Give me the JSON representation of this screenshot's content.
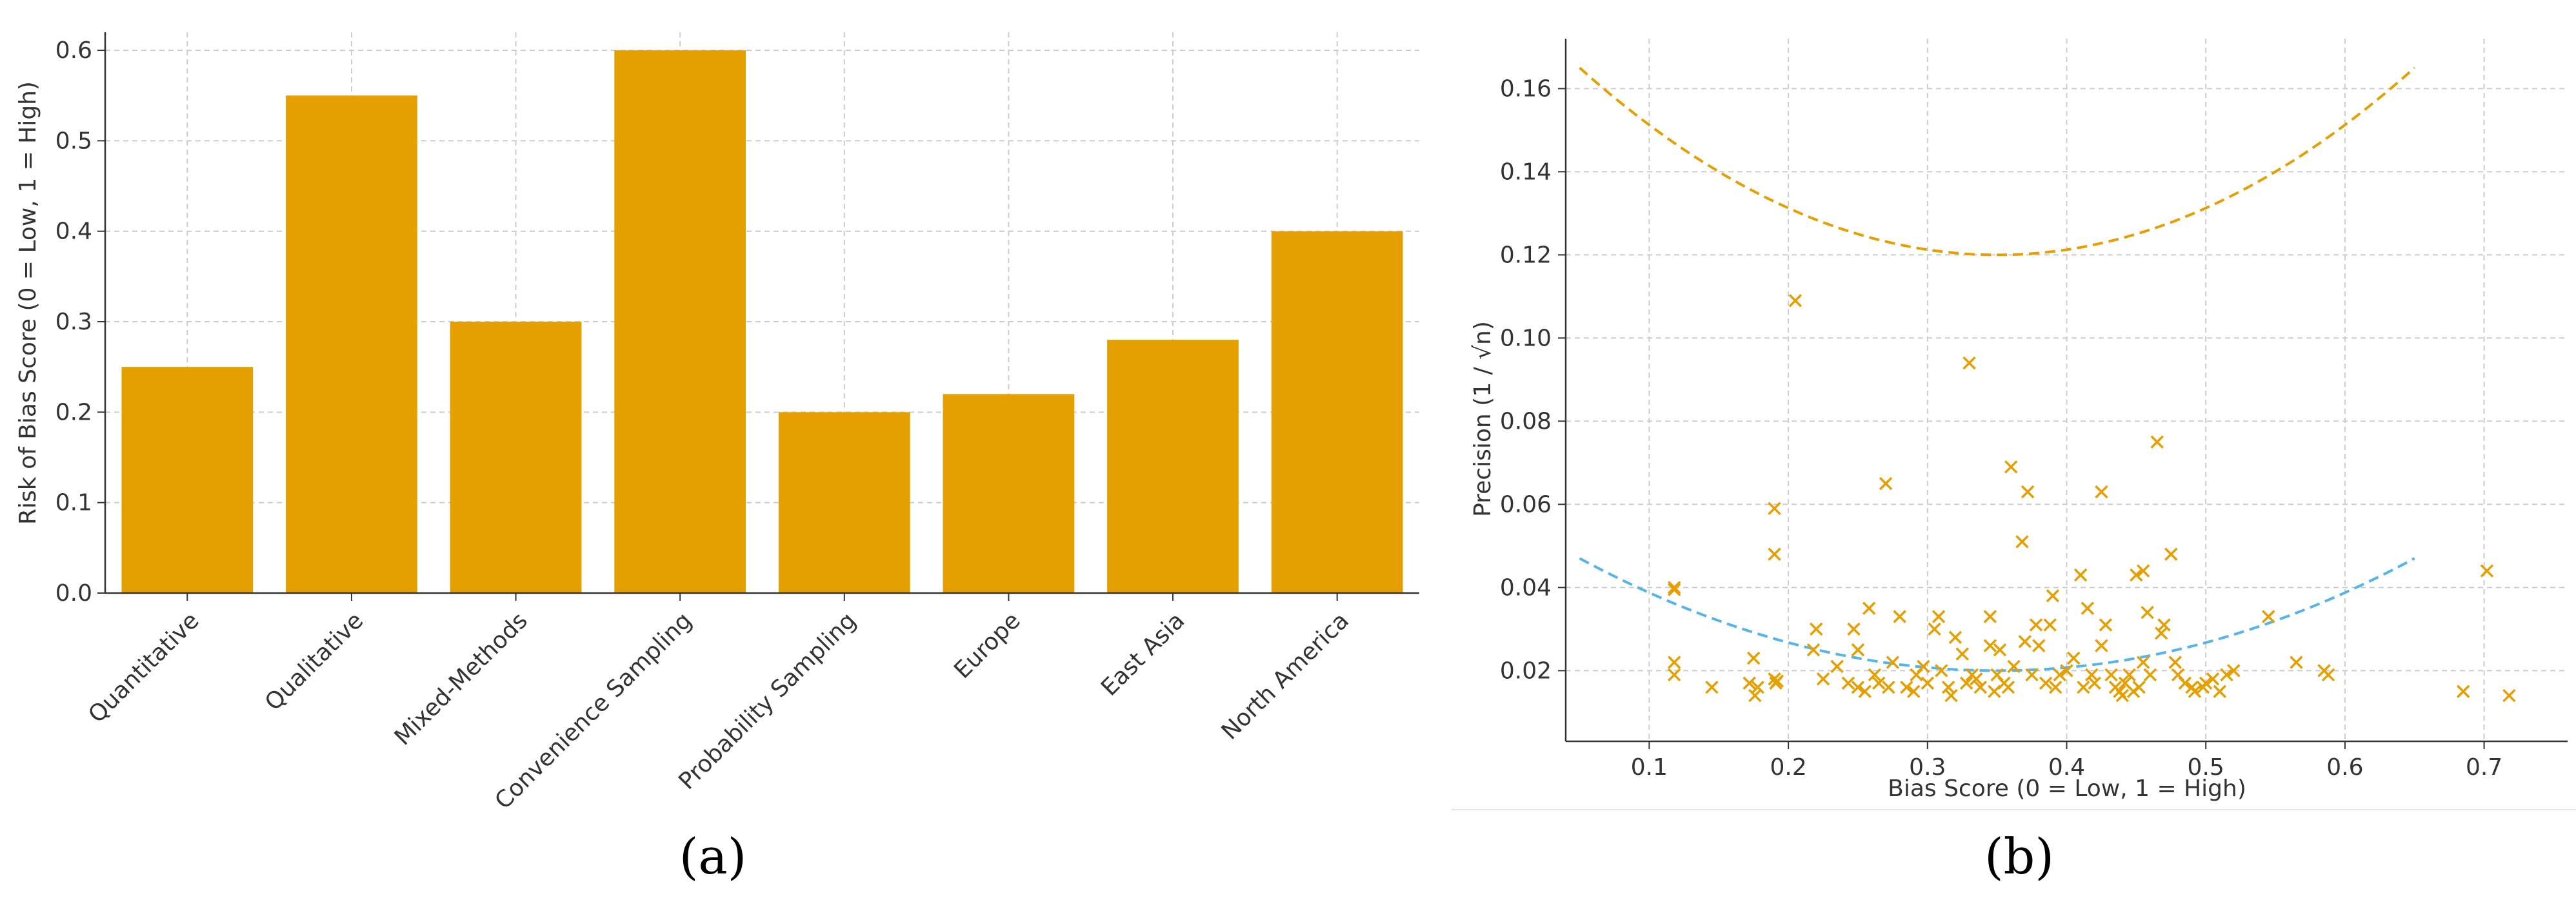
{
  "panel_labels": {
    "a": "(a)",
    "b": "(b)"
  },
  "chart_data": [
    {
      "type": "bar",
      "categories": [
        "Quantitative",
        "Qualitative",
        "Mixed-Methods",
        "Convenience Sampling",
        "Probability Sampling",
        "Europe",
        "East Asia",
        "North America"
      ],
      "values": [
        0.25,
        0.55,
        0.3,
        0.6,
        0.2,
        0.22,
        0.28,
        0.4
      ],
      "xlabel": "",
      "ylabel": "Risk of Bias Score (0 = Low, 1 = High)",
      "ylim": [
        0,
        0.62
      ],
      "yticks": [
        0.0,
        0.1,
        0.2,
        0.3,
        0.4,
        0.5,
        0.6
      ],
      "ytick_labels": [
        "0.0",
        "0.1",
        "0.2",
        "0.3",
        "0.4",
        "0.5",
        "0.6"
      ],
      "grid": true,
      "bar_color": "#E69F00"
    },
    {
      "type": "scatter",
      "xlabel": "Bias Score (0 = Low, 1 = High)",
      "ylabel": "Precision (1 / √n)",
      "xlim": [
        0.04,
        0.76
      ],
      "ylim": [
        0.003,
        0.172
      ],
      "xticks": [
        0.1,
        0.2,
        0.3,
        0.4,
        0.5,
        0.6,
        0.7
      ],
      "xtick_labels": [
        "0.1",
        "0.2",
        "0.3",
        "0.4",
        "0.5",
        "0.6",
        "0.7"
      ],
      "yticks": [
        0.02,
        0.04,
        0.06,
        0.08,
        0.1,
        0.12,
        0.14,
        0.16
      ],
      "ytick_labels": [
        "0.02",
        "0.04",
        "0.06",
        "0.08",
        "0.10",
        "0.12",
        "0.14",
        "0.16"
      ],
      "grid": true,
      "marker": "x",
      "marker_color": "#E69F00",
      "points": [
        [
          0.118,
          0.04
        ],
        [
          0.118,
          0.0395
        ],
        [
          0.118,
          0.022
        ],
        [
          0.118,
          0.019
        ],
        [
          0.145,
          0.016
        ],
        [
          0.172,
          0.017
        ],
        [
          0.175,
          0.023
        ],
        [
          0.176,
          0.014
        ],
        [
          0.178,
          0.016
        ],
        [
          0.19,
          0.059
        ],
        [
          0.19,
          0.048
        ],
        [
          0.19,
          0.018
        ],
        [
          0.191,
          0.017
        ],
        [
          0.192,
          0.0175
        ],
        [
          0.205,
          0.109
        ],
        [
          0.218,
          0.025
        ],
        [
          0.22,
          0.03
        ],
        [
          0.225,
          0.018
        ],
        [
          0.235,
          0.021
        ],
        [
          0.243,
          0.017
        ],
        [
          0.247,
          0.03
        ],
        [
          0.25,
          0.025
        ],
        [
          0.25,
          0.016
        ],
        [
          0.255,
          0.015
        ],
        [
          0.258,
          0.035
        ],
        [
          0.262,
          0.019
        ],
        [
          0.265,
          0.017
        ],
        [
          0.27,
          0.065
        ],
        [
          0.272,
          0.016
        ],
        [
          0.275,
          0.022
        ],
        [
          0.28,
          0.033
        ],
        [
          0.285,
          0.016
        ],
        [
          0.29,
          0.015
        ],
        [
          0.292,
          0.019
        ],
        [
          0.297,
          0.021
        ],
        [
          0.3,
          0.017
        ],
        [
          0.305,
          0.03
        ],
        [
          0.308,
          0.033
        ],
        [
          0.31,
          0.02
        ],
        [
          0.315,
          0.016
        ],
        [
          0.317,
          0.014
        ],
        [
          0.32,
          0.028
        ],
        [
          0.325,
          0.024
        ],
        [
          0.328,
          0.017
        ],
        [
          0.33,
          0.094
        ],
        [
          0.332,
          0.019
        ],
        [
          0.335,
          0.018
        ],
        [
          0.338,
          0.016
        ],
        [
          0.345,
          0.033
        ],
        [
          0.345,
          0.026
        ],
        [
          0.348,
          0.015
        ],
        [
          0.35,
          0.019
        ],
        [
          0.352,
          0.025
        ],
        [
          0.355,
          0.017
        ],
        [
          0.358,
          0.016
        ],
        [
          0.36,
          0.069
        ],
        [
          0.362,
          0.021
        ],
        [
          0.368,
          0.051
        ],
        [
          0.37,
          0.027
        ],
        [
          0.372,
          0.063
        ],
        [
          0.375,
          0.019
        ],
        [
          0.378,
          0.031
        ],
        [
          0.38,
          0.026
        ],
        [
          0.385,
          0.017
        ],
        [
          0.388,
          0.031
        ],
        [
          0.39,
          0.038
        ],
        [
          0.392,
          0.016
        ],
        [
          0.395,
          0.019
        ],
        [
          0.4,
          0.02
        ],
        [
          0.405,
          0.023
        ],
        [
          0.41,
          0.043
        ],
        [
          0.412,
          0.016
        ],
        [
          0.415,
          0.035
        ],
        [
          0.418,
          0.019
        ],
        [
          0.42,
          0.017
        ],
        [
          0.425,
          0.063
        ],
        [
          0.425,
          0.026
        ],
        [
          0.428,
          0.031
        ],
        [
          0.432,
          0.019
        ],
        [
          0.435,
          0.016
        ],
        [
          0.438,
          0.015
        ],
        [
          0.44,
          0.014
        ],
        [
          0.442,
          0.017
        ],
        [
          0.445,
          0.019
        ],
        [
          0.448,
          0.015
        ],
        [
          0.45,
          0.043
        ],
        [
          0.452,
          0.016
        ],
        [
          0.455,
          0.044
        ],
        [
          0.455,
          0.022
        ],
        [
          0.458,
          0.034
        ],
        [
          0.46,
          0.019
        ],
        [
          0.465,
          0.075
        ],
        [
          0.468,
          0.029
        ],
        [
          0.47,
          0.031
        ],
        [
          0.475,
          0.048
        ],
        [
          0.478,
          0.022
        ],
        [
          0.48,
          0.019
        ],
        [
          0.485,
          0.017
        ],
        [
          0.49,
          0.016
        ],
        [
          0.492,
          0.015
        ],
        [
          0.498,
          0.016
        ],
        [
          0.5,
          0.017
        ],
        [
          0.505,
          0.018
        ],
        [
          0.51,
          0.015
        ],
        [
          0.515,
          0.019
        ],
        [
          0.52,
          0.02
        ],
        [
          0.545,
          0.033
        ],
        [
          0.565,
          0.022
        ],
        [
          0.585,
          0.02
        ],
        [
          0.588,
          0.019
        ],
        [
          0.685,
          0.015
        ],
        [
          0.702,
          0.044
        ],
        [
          0.718,
          0.014
        ]
      ],
      "curves": [
        {
          "color": "#E69F00",
          "style": "dashed",
          "x_range": [
            0.05,
            0.65
          ],
          "vertex_x": 0.35,
          "vertex_y": 0.12,
          "endpoint_y": 0.165
        },
        {
          "color": "#56B4E9",
          "style": "dashed",
          "x_range": [
            0.05,
            0.65
          ],
          "vertex_x": 0.35,
          "vertex_y": 0.02,
          "endpoint_y": 0.047
        }
      ]
    }
  ]
}
